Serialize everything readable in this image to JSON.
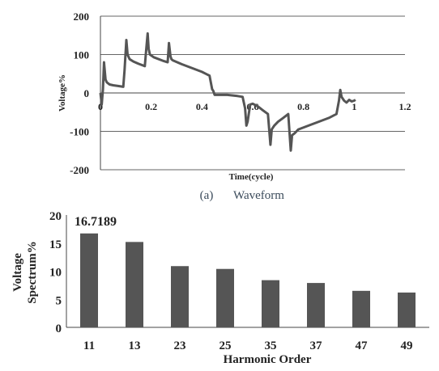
{
  "chart_data": [
    {
      "type": "line",
      "xlabel": "Time(cycle)",
      "ylabel": "Voltage%",
      "xlim": [
        0,
        1.2
      ],
      "ylim": [
        -200,
        200
      ],
      "xticks": [
        "0",
        "0.2",
        "0.4",
        "0.6",
        "0.8",
        "1",
        "1.2"
      ],
      "yticks": [
        "200",
        "100",
        "0",
        "-100",
        "-200"
      ],
      "grid": "horizontal",
      "caption": {
        "label": "(a)",
        "text": "Waveform"
      },
      "series": [
        {
          "color": "#555555",
          "x": [
            0,
            0.005,
            0.01,
            0.014,
            0.02,
            0.025,
            0.03,
            0.036,
            0.05,
            0.07,
            0.09,
            0.095,
            0.102,
            0.107,
            0.115,
            0.13,
            0.15,
            0.175,
            0.18,
            0.186,
            0.19,
            0.195,
            0.21,
            0.25,
            0.265,
            0.27,
            0.276,
            0.28,
            0.285,
            0.32,
            0.36,
            0.4,
            0.43,
            0.44,
            0.445,
            0.45,
            0.5,
            0.54,
            0.56,
            0.57,
            0.575,
            0.58,
            0.59,
            0.6,
            0.62,
            0.64,
            0.66,
            0.67,
            0.675,
            0.685,
            0.7,
            0.72,
            0.74,
            0.75,
            0.755,
            0.765,
            0.78,
            0.82,
            0.86,
            0.9,
            0.93,
            0.94,
            0.945,
            0.95,
            0.96,
            0.97,
            0.98,
            0.99,
            1.0,
            1.005
          ],
          "y": [
            0,
            -30,
            10,
            80,
            35,
            28,
            25,
            22,
            20,
            18,
            16,
            60,
            138,
            100,
            88,
            82,
            76,
            70,
            110,
            155,
            115,
            100,
            93,
            83,
            80,
            130,
            95,
            88,
            85,
            75,
            65,
            55,
            45,
            10,
            5,
            -5,
            -5,
            -8,
            -10,
            -40,
            -85,
            -75,
            -30,
            -28,
            -35,
            -45,
            -55,
            -135,
            -95,
            -85,
            -75,
            -65,
            -55,
            -150,
            -110,
            -105,
            -95,
            -85,
            -75,
            -65,
            -55,
            -20,
            8,
            -10,
            -20,
            -25,
            -18,
            -22,
            -20,
            -18
          ]
        }
      ]
    },
    {
      "type": "bar",
      "xlabel": "Harmonic Order",
      "ylabel": "Voltage Spectrum%",
      "ylabel_lines": [
        "Voltage",
        "Spectrum%"
      ],
      "ylim": [
        0,
        20
      ],
      "yticks": [
        "0",
        "5",
        "10",
        "15",
        "20"
      ],
      "categories": [
        "11",
        "13",
        "23",
        "25",
        "35",
        "37",
        "47",
        "49"
      ],
      "values": [
        16.7189,
        15.2,
        10.9,
        10.4,
        8.4,
        7.9,
        6.5,
        6.2
      ],
      "annotation": "16.7189",
      "color": "#555555"
    }
  ]
}
